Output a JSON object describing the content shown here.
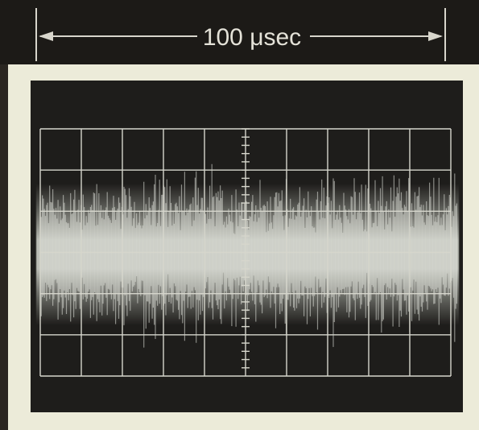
{
  "scale_label": "100 μsec"
}
